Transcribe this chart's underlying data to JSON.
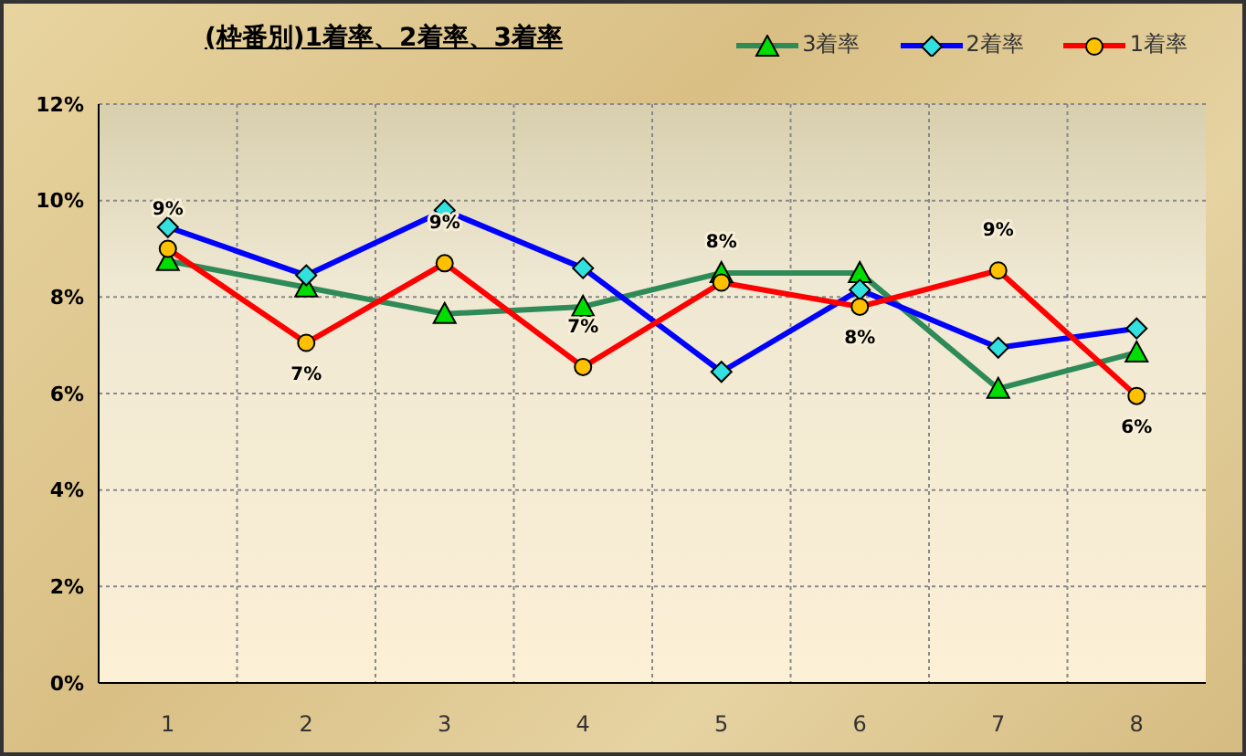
{
  "chart_data": {
    "type": "line",
    "title": "(枠番別)1着率、2着率、3着率",
    "categories": [
      "1",
      "2",
      "3",
      "4",
      "5",
      "6",
      "7",
      "8"
    ],
    "series": [
      {
        "name": "3着率",
        "color": "#2e8b57",
        "marker": "triangle",
        "values": [
          8.75,
          8.2,
          7.65,
          7.8,
          8.5,
          8.5,
          6.1,
          6.85
        ]
      },
      {
        "name": "2着率",
        "color": "#0000ff",
        "marker": "diamond",
        "values": [
          9.45,
          8.45,
          9.8,
          8.6,
          6.45,
          8.15,
          6.95,
          7.35
        ]
      },
      {
        "name": "1着率",
        "color": "#ff0000",
        "marker": "circle",
        "values": [
          9.0,
          7.05,
          8.7,
          6.55,
          8.3,
          7.8,
          8.55,
          5.95
        ],
        "value_labels": [
          "9%",
          "7%",
          "9%",
          "7%",
          "8%",
          "8%",
          "9%",
          "6%"
        ]
      }
    ],
    "ylim": [
      0,
      12
    ],
    "yticks": [
      {
        "value": 0,
        "label": "0%"
      },
      {
        "value": 2,
        "label": "2%"
      },
      {
        "value": 4,
        "label": "4%"
      },
      {
        "value": 6,
        "label": "6%"
      },
      {
        "value": 8,
        "label": "8%"
      },
      {
        "value": 10,
        "label": "10%"
      },
      {
        "value": 12,
        "label": "12%"
      }
    ],
    "grid": true,
    "legend": "top right"
  }
}
